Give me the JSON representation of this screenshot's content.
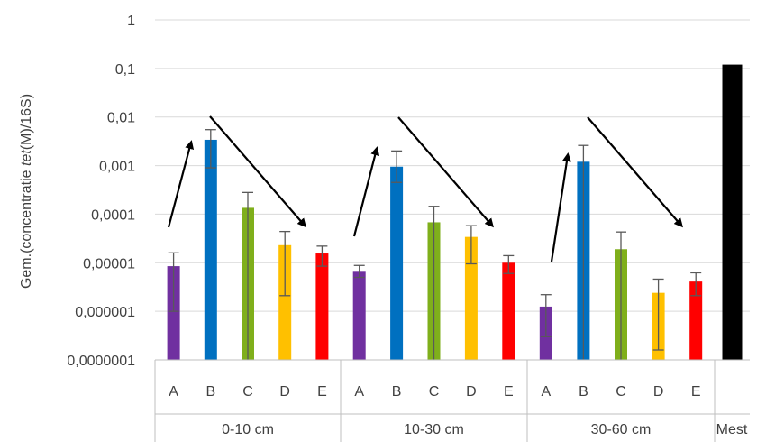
{
  "chart_data": {
    "type": "bar",
    "y_scale": "log",
    "ylim": [
      1e-07,
      1
    ],
    "y_ticks": [
      "1",
      "0,1",
      "0,01",
      "0,001",
      "0,0001",
      "0,00001",
      "0,000001",
      "0,0000001"
    ],
    "ylabel_prefix": "Gem.(concentratie ",
    "ylabel_italic": "tet",
    "ylabel_suffix": "(M)/16S)",
    "grid": true,
    "groups": [
      {
        "label": "0-10 cm",
        "bars": [
          {
            "cat": "A",
            "value": 8.5e-06,
            "err_low": 1e-06,
            "err_high": 1.6e-05,
            "color": "#7030A0"
          },
          {
            "cat": "B",
            "value": 0.0034,
            "err_low": 0.0009,
            "err_high": 0.0055,
            "color": "#0070C0"
          },
          {
            "cat": "C",
            "value": 0.000135,
            "err_low": 0.0,
            "err_high": 0.00028,
            "color": "#7FAF1B"
          },
          {
            "cat": "D",
            "value": 2.3e-05,
            "err_low": 2.1e-06,
            "err_high": 4.4e-05,
            "color": "#FFC000"
          },
          {
            "cat": "E",
            "value": 1.55e-05,
            "err_low": 8.5e-06,
            "err_high": 2.2e-05,
            "color": "#FF0000"
          }
        ]
      },
      {
        "label": "10-30 cm",
        "bars": [
          {
            "cat": "A",
            "value": 6.8e-06,
            "err_low": 5e-06,
            "err_high": 8.8e-06,
            "color": "#7030A0"
          },
          {
            "cat": "B",
            "value": 0.00095,
            "err_low": 0.00045,
            "err_high": 0.002,
            "color": "#0070C0"
          },
          {
            "cat": "C",
            "value": 6.8e-05,
            "err_low": 0.0,
            "err_high": 0.000145,
            "color": "#7FAF1B"
          },
          {
            "cat": "D",
            "value": 3.4e-05,
            "err_low": 9.5e-06,
            "err_high": 5.8e-05,
            "color": "#FFC000"
          },
          {
            "cat": "E",
            "value": 1e-05,
            "err_low": 6e-06,
            "err_high": 1.4e-05,
            "color": "#FF0000"
          }
        ]
      },
      {
        "label": "30-60 cm",
        "bars": [
          {
            "cat": "A",
            "value": 1.25e-06,
            "err_low": 3e-07,
            "err_high": 2.2e-06,
            "color": "#7030A0"
          },
          {
            "cat": "B",
            "value": 0.0012,
            "err_low": 0.0,
            "err_high": 0.0026,
            "color": "#0070C0"
          },
          {
            "cat": "C",
            "value": 1.9e-05,
            "err_low": 0.0,
            "err_high": 4.3e-05,
            "color": "#7FAF1B"
          },
          {
            "cat": "D",
            "value": 2.4e-06,
            "err_low": 1.6e-07,
            "err_high": 4.6e-06,
            "color": "#FFC000"
          },
          {
            "cat": "E",
            "value": 4.1e-06,
            "err_low": 2.1e-06,
            "err_high": 6.2e-06,
            "color": "#FF0000"
          }
        ]
      },
      {
        "label": "Mest",
        "bars": [
          {
            "cat": "",
            "value": 0.12,
            "err_low": null,
            "err_high": null,
            "color": "#000000"
          }
        ]
      }
    ],
    "annotations": "trend arrows: rising from A to B and falling from B to E within each depth group"
  }
}
